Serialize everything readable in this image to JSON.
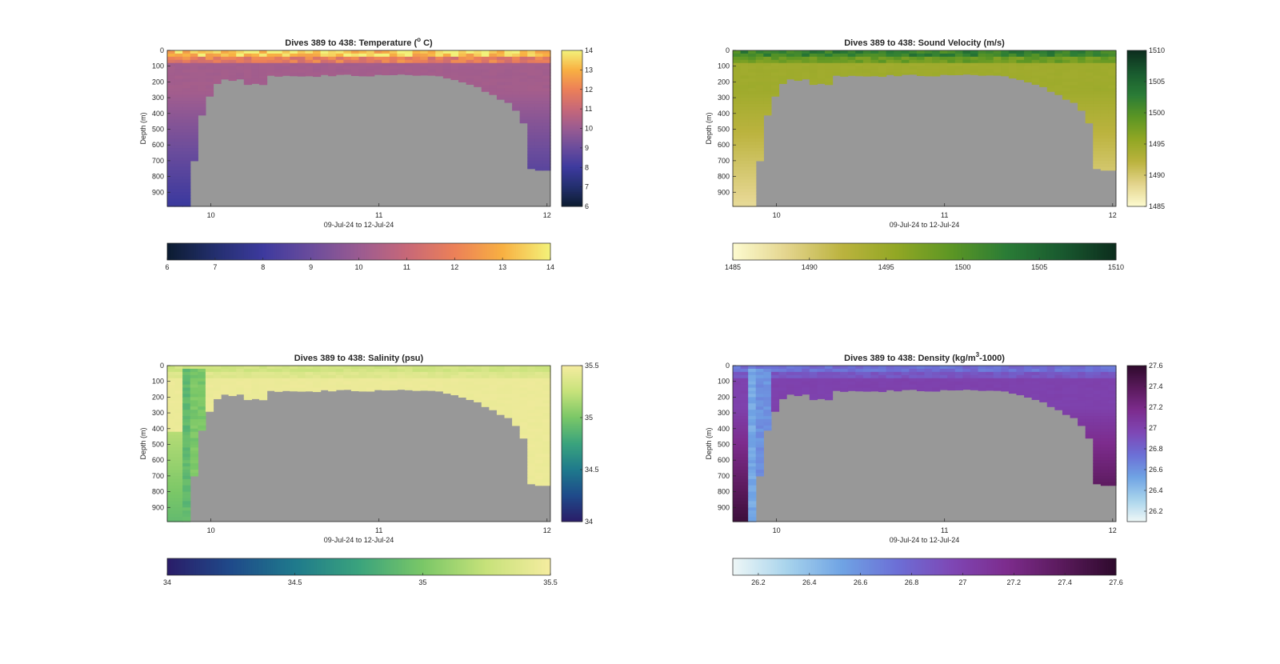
{
  "figure": {
    "background": "#ffffff",
    "axes_background": "#989898",
    "land_color": "#989898"
  },
  "chart_data": [
    {
      "type": "heatmap",
      "title_main": "Dives 389 to 438: Temperature (",
      "title_sup": "o",
      "title_end": " C)",
      "xlabel": "09-Jul-24 to 12-Jul-24",
      "ylabel": "Depth (m)",
      "x_ticks": [
        "10",
        "11",
        "12"
      ],
      "x_tick_values": [
        10,
        11,
        12
      ],
      "xlim": [
        9.74,
        12.02
      ],
      "y_ticks": [
        "0",
        "100",
        "200",
        "300",
        "400",
        "500",
        "600",
        "700",
        "800",
        "900"
      ],
      "ylim": [
        0,
        990
      ],
      "colorbar_ticks": [
        "6",
        "7",
        "8",
        "9",
        "10",
        "11",
        "12",
        "13",
        "14"
      ],
      "clim": [
        6,
        14
      ],
      "colormap": [
        "#0c1c30",
        "#232f6e",
        "#3d3a9e",
        "#6a4c9c",
        "#9a5b91",
        "#c76878",
        "#ec8058",
        "#f8b042",
        "#f3f27a"
      ],
      "surface_value": 13.5,
      "mixed_value": 10.2,
      "deep_gradient": true,
      "special_columns": []
    },
    {
      "type": "heatmap",
      "title_main": "Dives 389 to 438: Sound Velocity (m/s)",
      "title_sup": "",
      "title_end": "",
      "xlabel": "09-Jul-24 to 12-Jul-24",
      "ylabel": "Depth (m)",
      "x_ticks": [
        "10",
        "11",
        "12"
      ],
      "x_tick_values": [
        10,
        11,
        12
      ],
      "xlim": [
        9.74,
        12.02
      ],
      "y_ticks": [
        "0",
        "100",
        "200",
        "300",
        "400",
        "500",
        "600",
        "700",
        "800",
        "900"
      ],
      "ylim": [
        0,
        990
      ],
      "colorbar_ticks": [
        "1485",
        "1490",
        "1495",
        "1500",
        "1505",
        "1510"
      ],
      "clim": [
        1485,
        1510
      ],
      "colormap": [
        "#fdfbd0",
        "#e3d48c",
        "#bbb33e",
        "#91a724",
        "#5c9624",
        "#2a7c36",
        "#195a2f",
        "#0c2d1d"
      ],
      "surface_value": 1502,
      "mixed_value": 1494.5,
      "deep_gradient": true,
      "special_columns": []
    },
    {
      "type": "heatmap",
      "title_main": "Dives 389 to 438: Salinity (psu)",
      "title_sup": "",
      "title_end": "",
      "xlabel": "09-Jul-24 to 12-Jul-24",
      "ylabel": "Depth (m)",
      "x_ticks": [
        "10",
        "11",
        "12"
      ],
      "x_tick_values": [
        10,
        11,
        12
      ],
      "xlim": [
        9.74,
        12.02
      ],
      "y_ticks": [
        "0",
        "100",
        "200",
        "300",
        "400",
        "500",
        "600",
        "700",
        "800",
        "900"
      ],
      "ylim": [
        0,
        990
      ],
      "colorbar_ticks": [
        "34",
        "34.5",
        "35",
        "35.5"
      ],
      "clim": [
        34,
        35.5
      ],
      "colormap": [
        "#2a1d68",
        "#1f4a8a",
        "#1f7a8c",
        "#3aa37d",
        "#7ac767",
        "#c7e27a",
        "#f5eca0"
      ],
      "surface_value": 35.3,
      "mixed_value": 35.45,
      "deep_gradient": false,
      "special_columns": [
        {
          "x": 9.87,
          "value": 34.9
        },
        {
          "x": 9.92,
          "value": 35.0
        }
      ]
    },
    {
      "type": "heatmap",
      "title_main": "Dives 389 to 438: Density (kg/m",
      "title_sup": "3",
      "title_end": "-1000)",
      "xlabel": "09-Jul-24 to 12-Jul-24",
      "ylabel": "Depth (m)",
      "x_ticks": [
        "10",
        "11",
        "12"
      ],
      "x_tick_values": [
        10,
        11,
        12
      ],
      "xlim": [
        9.74,
        12.02
      ],
      "y_ticks": [
        "0",
        "100",
        "200",
        "300",
        "400",
        "500",
        "600",
        "700",
        "800",
        "900"
      ],
      "ylim": [
        0,
        990
      ],
      "colorbar_ticks": [
        "26.2",
        "26.4",
        "26.6",
        "26.8",
        "27",
        "27.2",
        "27.4",
        "27.6"
      ],
      "clim": [
        26.1,
        27.6
      ],
      "colormap": [
        "#eef7f7",
        "#a7d3ec",
        "#6fa3e4",
        "#6c6fd6",
        "#7e47b5",
        "#7d2c8d",
        "#5a1a5c",
        "#2e0a2c"
      ],
      "surface_value": 26.75,
      "mixed_value": 27.0,
      "deep_gradient": true,
      "special_columns": [
        {
          "x": 9.87,
          "value": 26.5
        },
        {
          "x": 9.92,
          "value": 26.6
        }
      ]
    }
  ]
}
